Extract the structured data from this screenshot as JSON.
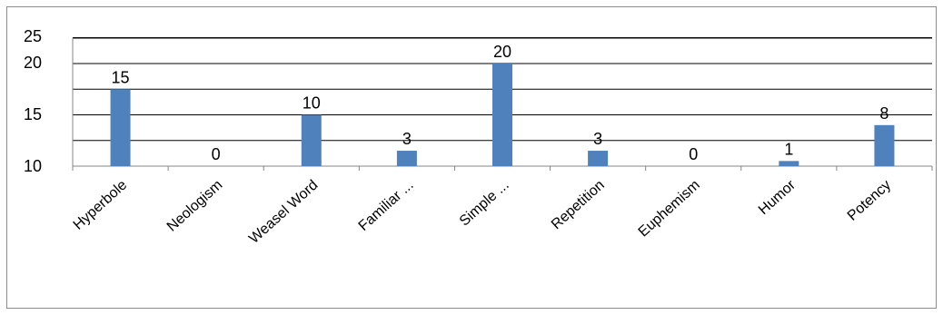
{
  "chart_data": {
    "type": "bar",
    "categories": [
      "Hyperbole",
      "Neologism",
      "Weasel Word",
      "Familiar ...",
      "Simple ...",
      "Repetition",
      "Euphemism",
      "Humor",
      "Potency"
    ],
    "values": [
      15,
      0,
      10,
      3,
      20,
      3,
      0,
      1,
      8
    ],
    "data_labels": [
      "15",
      "0",
      "10",
      "3",
      "20",
      "3",
      "0",
      "1",
      "8"
    ],
    "y_tick_labels": [
      "25",
      "20",
      "15",
      "10"
    ],
    "title": "",
    "xlabel": "",
    "ylabel": "",
    "ylim": [
      0,
      25
    ],
    "grid": true,
    "legend": "none",
    "bar_color": "#4f81bd",
    "gridline_color": "#000000"
  }
}
